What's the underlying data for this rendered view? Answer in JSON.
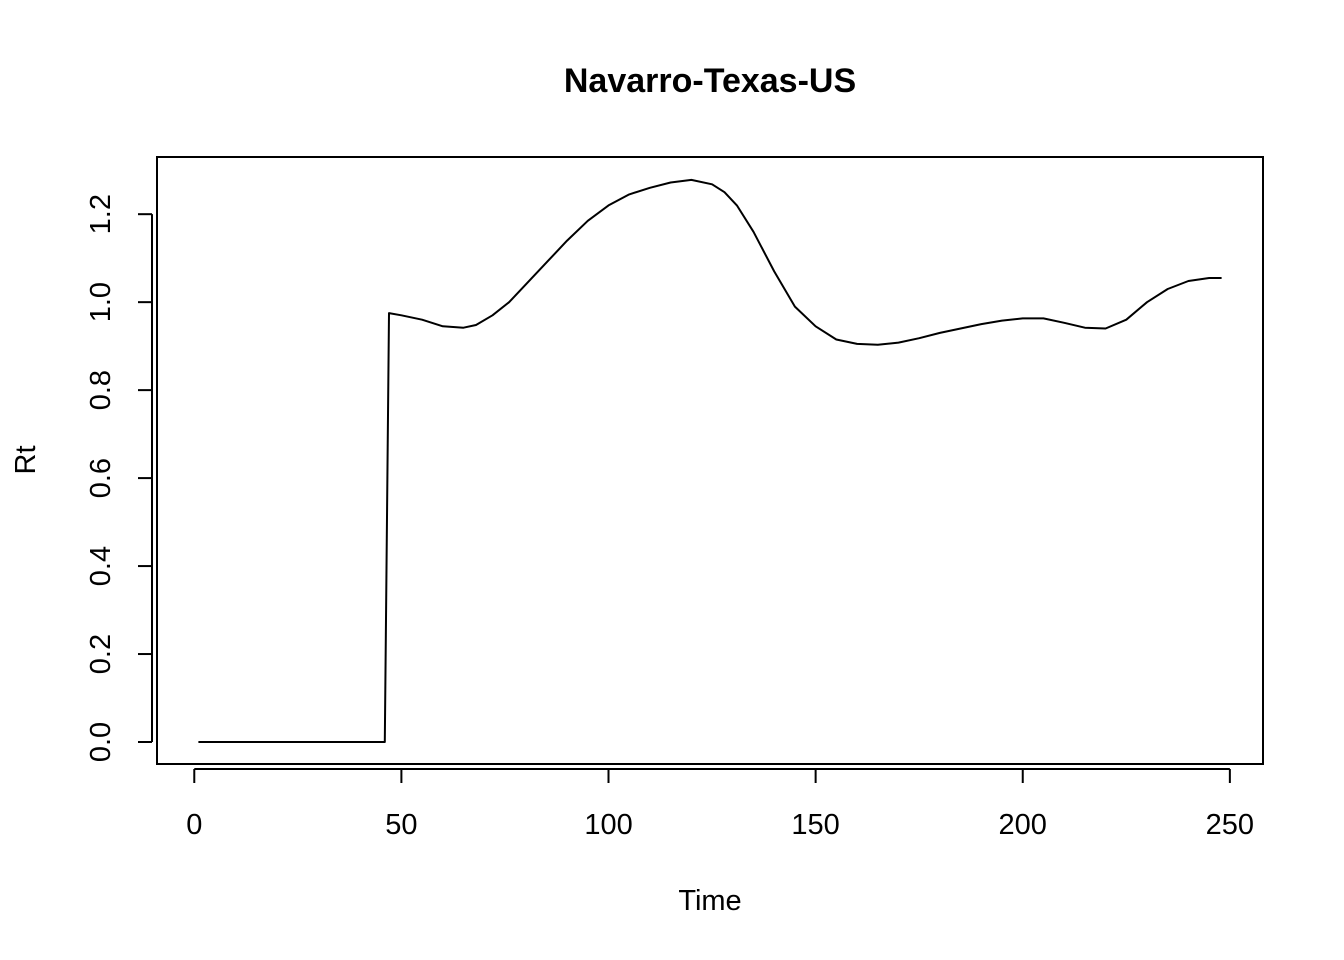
{
  "chart_data": {
    "type": "line",
    "title": "Navarro-Texas-US",
    "xlabel": "Time",
    "ylabel": "Rt",
    "xlim": [
      -9,
      258
    ],
    "ylim": [
      -0.05,
      1.33
    ],
    "xticks": [
      0,
      50,
      100,
      150,
      200,
      250
    ],
    "xtick_labels": [
      "0",
      "50",
      "100",
      "150",
      "200",
      "250"
    ],
    "yticks": [
      0.0,
      0.2,
      0.4,
      0.6,
      0.8,
      1.0,
      1.2
    ],
    "ytick_labels": [
      "0.0",
      "0.2",
      "0.4",
      "0.6",
      "0.8",
      "1.0",
      "1.2"
    ],
    "grid": false,
    "legend": false,
    "line_color": "#000000",
    "series": [
      {
        "x": [
          1,
          10,
          20,
          30,
          40,
          46,
          47,
          50,
          55,
          60,
          65,
          68,
          72,
          76,
          80,
          85,
          90,
          95,
          100,
          105,
          110,
          115,
          120,
          125,
          128,
          131,
          135,
          140,
          145,
          150,
          155,
          160,
          165,
          170,
          175,
          180,
          185,
          190,
          195,
          200,
          205,
          210,
          215,
          220,
          225,
          230,
          235,
          240,
          245,
          248
        ],
        "y": [
          0.0,
          0.0,
          0.0,
          0.0,
          0.0,
          0.0,
          0.975,
          0.97,
          0.96,
          0.945,
          0.942,
          0.948,
          0.97,
          1.0,
          1.04,
          1.09,
          1.14,
          1.185,
          1.22,
          1.245,
          1.26,
          1.272,
          1.278,
          1.268,
          1.25,
          1.22,
          1.16,
          1.07,
          0.99,
          0.945,
          0.915,
          0.905,
          0.903,
          0.908,
          0.918,
          0.93,
          0.94,
          0.95,
          0.958,
          0.963,
          0.963,
          0.953,
          0.942,
          0.94,
          0.96,
          1.0,
          1.03,
          1.048,
          1.055,
          1.055
        ]
      }
    ]
  }
}
